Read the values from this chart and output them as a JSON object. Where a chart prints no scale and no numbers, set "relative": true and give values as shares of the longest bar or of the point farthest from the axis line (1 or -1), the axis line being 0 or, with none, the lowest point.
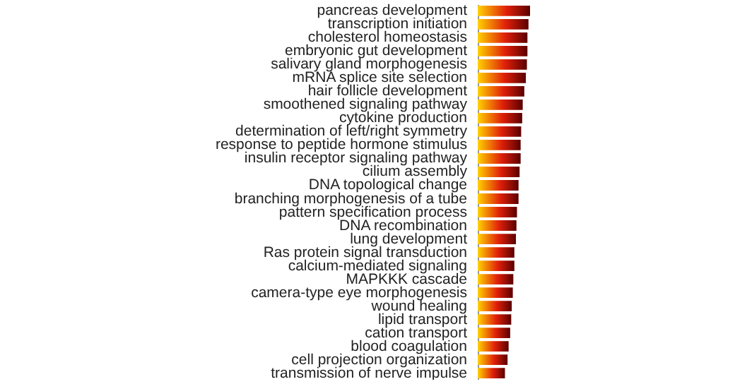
{
  "chart_data": {
    "type": "bar",
    "orientation": "horizontal",
    "relative": true,
    "tick_labels": "y",
    "categories": [
      "pancreas development",
      "transcription initiation",
      "cholesterol homeostasis",
      "embryonic gut development",
      "salivary gland morphogenesis",
      "mRNA splice site selection",
      "hair follicle development",
      "smoothened signaling pathway",
      "cytokine production",
      "determination of left/right symmetry",
      "response to peptide hormone stimulus",
      "insulin receptor signaling pathway",
      "cilium assembly",
      "DNA topological change",
      "branching morphogenesis of a tube",
      "pattern specification process",
      "DNA recombination",
      "lung development",
      "Ras protein signal transduction",
      "calcium-mediated signaling",
      "MAPKKK cascade",
      "camera-type eye morphogenesis",
      "wound healing",
      "lipid transport",
      "cation transport",
      "blood coagulation",
      "cell projection organization",
      "transmission of nerve impulse"
    ],
    "series": [
      {
        "color": "#e0200a",
        "values": [
          1,
          0.97,
          0.95,
          0.95,
          0.94,
          0.92,
          0.89,
          0.86,
          0.85,
          0.83,
          0.82,
          0.82,
          0.8,
          0.78,
          0.78,
          0.75,
          0.74,
          0.73,
          0.7,
          0.7,
          0.68,
          0.67,
          0.65,
          0.64,
          0.62,
          0.59,
          0.57,
          0.52
        ]
      }
    ]
  }
}
